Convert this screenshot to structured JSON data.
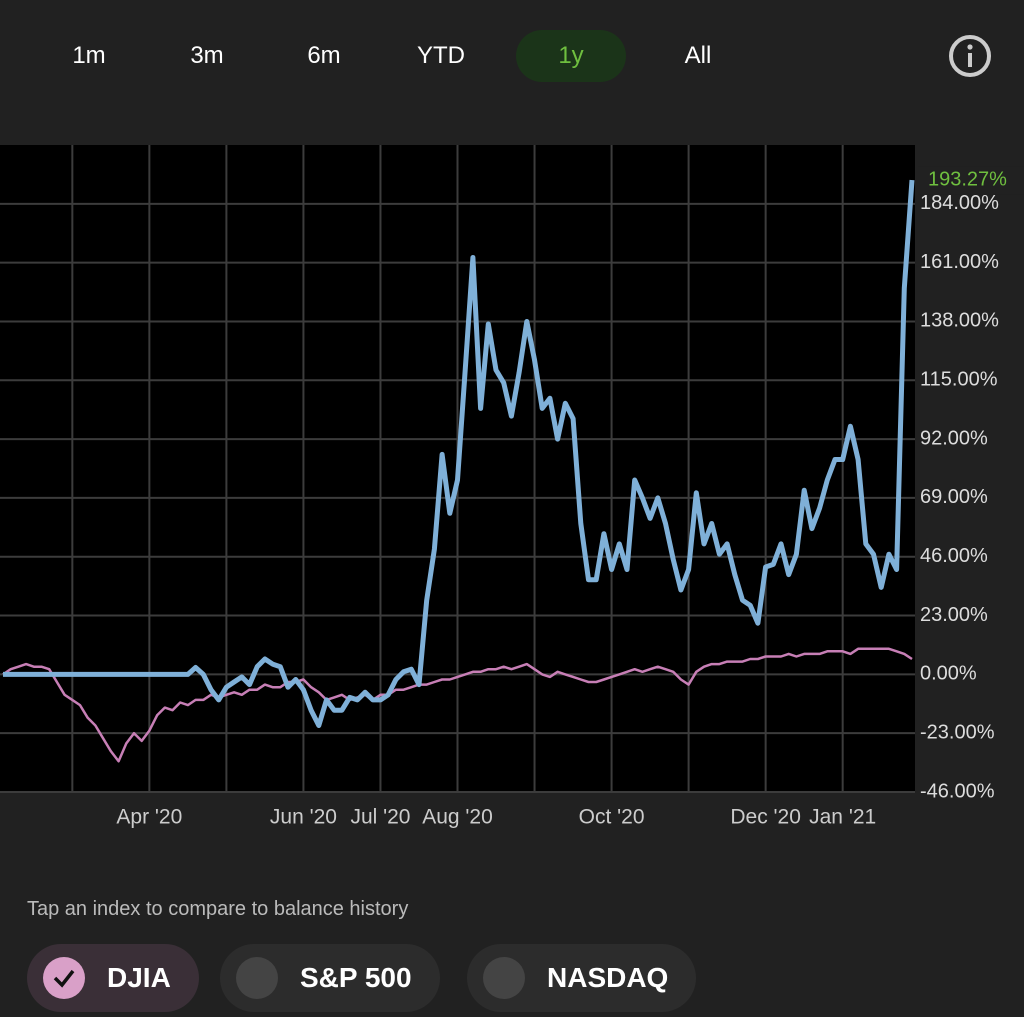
{
  "tabs": [
    "1m",
    "3m",
    "6m",
    "YTD",
    "1y",
    "All"
  ],
  "selected_tab": 4,
  "compare_prompt": "Tap an index to compare to balance history",
  "index_chips": [
    {
      "label": "DJIA",
      "selected": true
    },
    {
      "label": "S&P 500",
      "selected": false
    },
    {
      "label": "NASDAQ",
      "selected": false
    }
  ],
  "chart_data": {
    "type": "line",
    "categories": [
      null,
      null,
      null,
      null,
      null,
      null,
      null,
      null,
      null,
      null,
      null,
      null,
      null,
      null,
      null,
      null,
      null,
      null,
      null,
      "Apr '20",
      null,
      null,
      null,
      null,
      null,
      null,
      null,
      null,
      null,
      null,
      null,
      null,
      null,
      null,
      null,
      null,
      null,
      null,
      null,
      "Jun '20",
      null,
      null,
      null,
      null,
      null,
      null,
      null,
      null,
      null,
      "Jul '20",
      null,
      null,
      null,
      null,
      null,
      null,
      null,
      null,
      null,
      "Aug '20",
      null,
      null,
      null,
      null,
      null,
      null,
      null,
      null,
      null,
      null,
      null,
      null,
      null,
      null,
      null,
      null,
      null,
      null,
      null,
      "Oct '20",
      null,
      null,
      null,
      null,
      null,
      null,
      null,
      null,
      null,
      null,
      null,
      null,
      null,
      null,
      null,
      null,
      null,
      null,
      null,
      "Dec '20",
      null,
      null,
      null,
      null,
      null,
      null,
      null,
      null,
      null,
      "Jan '21",
      null,
      null,
      null,
      null,
      null,
      null,
      null,
      null,
      null
    ],
    "series": [
      {
        "color": "#7fb0d8",
        "values": [
          0,
          0,
          0,
          0,
          0,
          0,
          0,
          0,
          0,
          0,
          0,
          0,
          0,
          0,
          0,
          0,
          0,
          0,
          0,
          0,
          0,
          0,
          0,
          0,
          0,
          2.7,
          0,
          -6,
          -10,
          -5,
          -3,
          -1,
          -4,
          3,
          6,
          4,
          3,
          -5,
          -2,
          -6,
          -14,
          -20,
          -10,
          -14,
          -14,
          -9,
          -10,
          -7,
          -10,
          -10,
          -8,
          -2,
          1,
          2,
          -4,
          29,
          49,
          86,
          63,
          76,
          119,
          163,
          104,
          137,
          119,
          114,
          101,
          118,
          138,
          123,
          104,
          108,
          92,
          106,
          100,
          59,
          37,
          37,
          55,
          41,
          51,
          41,
          76,
          69,
          61,
          69,
          59,
          45,
          33,
          41,
          71,
          51,
          59,
          47,
          51,
          39,
          29,
          27,
          20,
          42,
          43,
          51,
          39,
          47,
          72,
          57,
          65,
          76,
          84,
          84,
          97,
          84,
          51,
          47,
          34,
          47,
          41,
          151,
          193.27
        ],
        "value_labels": [
          null,
          null,
          null,
          null,
          null,
          null,
          null,
          null,
          null,
          null,
          null,
          null,
          null,
          null,
          null,
          null,
          null,
          null,
          null,
          null,
          null,
          null,
          null,
          null,
          null,
          null,
          null,
          null,
          null,
          null,
          null,
          null,
          null,
          null,
          null,
          null,
          null,
          null,
          null,
          null,
          null,
          null,
          null,
          null,
          null,
          null,
          null,
          null,
          null,
          null,
          null,
          null,
          null,
          null,
          null,
          null,
          null,
          null,
          null,
          null,
          null,
          null,
          null,
          null,
          null,
          null,
          null,
          null,
          null,
          null,
          null,
          null,
          null,
          null,
          null,
          null,
          null,
          null,
          null,
          null,
          null,
          null,
          null,
          null,
          null,
          null,
          null,
          null,
          null,
          null,
          null,
          null,
          null,
          null,
          null,
          null,
          null,
          null,
          null,
          null,
          null,
          null,
          null,
          null,
          null,
          null,
          null,
          null,
          null,
          null,
          null,
          null,
          null,
          null,
          null,
          null,
          null,
          null,
          "193.27%"
        ],
        "label_color": "#6fbf3f"
      },
      {
        "color": "#c77fb6",
        "values": [
          0,
          2,
          3,
          4,
          3,
          3,
          2,
          -3,
          -8,
          -10,
          -12,
          -17,
          -20,
          -25,
          -30,
          -34,
          -27,
          -23,
          -26,
          -22,
          -16,
          -13,
          -14,
          -11,
          -12,
          -10,
          -10,
          -8,
          -9,
          -8,
          -7,
          -8,
          -6,
          -6,
          -4,
          -5,
          -5,
          -3,
          -3,
          -2,
          -5,
          -7,
          -10,
          -9,
          -8,
          -10,
          -9,
          -8,
          -10,
          -8,
          -8,
          -6,
          -6,
          -5,
          -4,
          -4,
          -3,
          -2,
          -2,
          -1,
          0,
          1,
          1,
          2,
          2,
          3,
          2,
          3,
          4,
          2,
          0,
          -1,
          1,
          0,
          -1,
          -2,
          -3,
          -3,
          -2,
          -1,
          0,
          1,
          2,
          1,
          2,
          3,
          2,
          1,
          -2,
          -4,
          1,
          3,
          4,
          4,
          5,
          5,
          5,
          6,
          6,
          7,
          7,
          7,
          8,
          7,
          8,
          8,
          8,
          9,
          9,
          9,
          8,
          10,
          10,
          10,
          10,
          10,
          9,
          8,
          6
        ]
      }
    ],
    "ylim": [
      -46,
      207
    ],
    "yticks": [
      {
        "value": -46,
        "label": "-46.00%"
      },
      {
        "value": -23,
        "label": "-23.00%"
      },
      {
        "value": 0,
        "label": "0.00%"
      },
      {
        "value": 23,
        "label": "23.00%"
      },
      {
        "value": 46,
        "label": "46.00%"
      },
      {
        "value": 69,
        "label": "69.00%"
      },
      {
        "value": 92,
        "label": "92.00%"
      },
      {
        "value": 115,
        "label": "115.00%"
      },
      {
        "value": 138,
        "label": "138.00%"
      },
      {
        "value": 161,
        "label": "161.00%"
      },
      {
        "value": 184,
        "label": "184.00%"
      }
    ],
    "grid": true
  }
}
